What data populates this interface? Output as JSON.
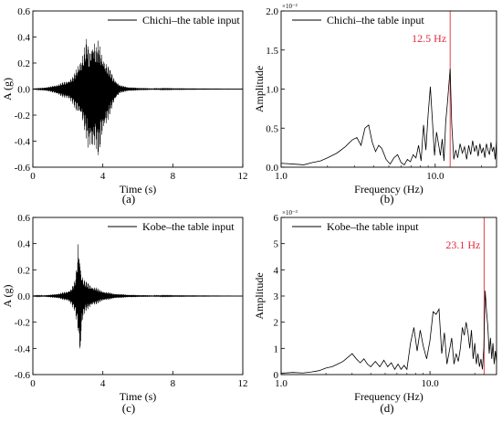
{
  "figure": {
    "panels": [
      {
        "id": "a",
        "panel_label": "(a)",
        "chart_data": {
          "type": "line",
          "title": "",
          "xlabel": "Time (s)",
          "ylabel": "A (g)",
          "xlim": [
            0,
            12
          ],
          "ylim": [
            -0.6,
            0.6
          ],
          "xscale": "linear",
          "xticks": [
            0,
            4,
            8,
            12
          ],
          "xtick_labels": [
            "0",
            "4",
            "8",
            "12"
          ],
          "yticks": [
            -0.6,
            -0.4,
            -0.2,
            0.0,
            0.2,
            0.4,
            0.6
          ],
          "ytick_labels": [
            "-0.6",
            "-0.4",
            "-0.2",
            "0.0",
            "0.2",
            "0.4",
            "0.6"
          ],
          "y_exponent_label": "",
          "legend": {
            "position": "top-right",
            "entries": [
              "Chichi–the table input"
            ]
          },
          "series": [
            {
              "name": "Chichi–the table input",
              "color": "#000000",
              "x": [
                0.0,
                0.5,
                1.0,
                1.5,
                2.0,
                2.3,
                2.5,
                2.7,
                2.9,
                3.0,
                3.1,
                3.2,
                3.3,
                3.4,
                3.5,
                3.6,
                3.7,
                3.8,
                3.9,
                4.0,
                4.2,
                4.4,
                4.6,
                4.8,
                5.0,
                5.5,
                6.0,
                7.0,
                8.0,
                10.0,
                12.0
              ],
              "ymax": [
                0.005,
                0.01,
                0.02,
                0.04,
                0.07,
                0.1,
                0.16,
                0.24,
                0.3,
                0.36,
                0.42,
                0.3,
                0.34,
                0.4,
                0.42,
                0.32,
                0.38,
                0.36,
                0.3,
                0.28,
                0.22,
                0.16,
                0.1,
                0.06,
                0.03,
                0.015,
                0.01,
                0.005,
                0.003,
                0.002,
                0.001
              ],
              "ymin": [
                -0.005,
                -0.01,
                -0.02,
                -0.05,
                -0.08,
                -0.12,
                -0.18,
                -0.22,
                -0.3,
                -0.36,
                -0.4,
                -0.5,
                -0.46,
                -0.55,
                -0.5,
                -0.45,
                -0.54,
                -0.52,
                -0.42,
                -0.38,
                -0.3,
                -0.2,
                -0.12,
                -0.07,
                -0.03,
                -0.015,
                -0.01,
                -0.005,
                -0.003,
                -0.002,
                -0.001
              ]
            }
          ]
        }
      },
      {
        "id": "b",
        "panel_label": "(b)",
        "chart_data": {
          "type": "line",
          "title": "",
          "xlabel": "Frequency (Hz)",
          "ylabel": "Amplitude",
          "xlim": [
            1,
            25
          ],
          "ylim": [
            0,
            0.02
          ],
          "xscale": "log",
          "xticks": [
            1,
            10
          ],
          "xtick_labels": [
            "1.0",
            "10.0"
          ],
          "yticks": [
            0,
            0.005,
            0.01,
            0.015,
            0.02
          ],
          "ytick_labels": [
            "0.0",
            "0.5",
            "1.0",
            "1.5",
            "2.0"
          ],
          "y_exponent_label": "×10⁻²",
          "legend": {
            "position": "top-right",
            "entries": [
              "Chichi–the table input"
            ]
          },
          "annotations": [
            {
              "text": "12.5 Hz",
              "x": 12.5,
              "color": "#e0293a"
            }
          ],
          "series": [
            {
              "name": "Chichi–the table input",
              "color": "#000000",
              "x": [
                1.0,
                1.2,
                1.4,
                1.6,
                1.8,
                2.0,
                2.3,
                2.6,
                2.9,
                3.1,
                3.3,
                3.5,
                3.7,
                3.9,
                4.1,
                4.3,
                4.5,
                4.8,
                5.1,
                5.4,
                5.7,
                6.0,
                6.3,
                6.6,
                6.9,
                7.2,
                7.5,
                7.8,
                8.1,
                8.4,
                8.7,
                9.0,
                9.3,
                9.6,
                9.9,
                10.2,
                10.5,
                10.8,
                11.1,
                11.4,
                11.7,
                12.0,
                12.5,
                12.8,
                13.2,
                13.6,
                14.0,
                14.5,
                15.0,
                15.5,
                16.0,
                16.5,
                17.0,
                17.5,
                18.0,
                18.5,
                19.0,
                19.5,
                20.0,
                20.5,
                21.0,
                21.5,
                22.0,
                22.5,
                23.0,
                23.5,
                24.0,
                24.5,
                25.0
              ],
              "y": [
                0.0005,
                0.0004,
                0.0003,
                0.0006,
                0.0008,
                0.0012,
                0.0018,
                0.0026,
                0.0035,
                0.0038,
                0.0028,
                0.005,
                0.0054,
                0.0032,
                0.002,
                0.0028,
                0.0024,
                0.001,
                0.0004,
                0.0012,
                0.0016,
                0.0006,
                0.0003,
                0.001,
                0.0007,
                0.0016,
                0.0012,
                0.0028,
                0.0008,
                0.0054,
                0.0022,
                0.0068,
                0.0103,
                0.0058,
                0.0015,
                0.0045,
                0.003,
                0.0015,
                0.0036,
                0.0008,
                0.0058,
                0.0082,
                0.0126,
                0.0055,
                0.001,
                0.0022,
                0.0012,
                0.003,
                0.0018,
                0.0026,
                0.001,
                0.0028,
                0.0016,
                0.0034,
                0.002,
                0.0028,
                0.0014,
                0.003,
                0.0018,
                0.0025,
                0.0012,
                0.003,
                0.0022,
                0.0016,
                0.0032,
                0.002,
                0.0026,
                0.001,
                0.0034
              ]
            }
          ]
        }
      },
      {
        "id": "c",
        "panel_label": "(c)",
        "chart_data": {
          "type": "line",
          "title": "",
          "xlabel": "Time (s)",
          "ylabel": "A (g)",
          "xlim": [
            0,
            12
          ],
          "ylim": [
            -0.6,
            0.6
          ],
          "xscale": "linear",
          "xticks": [
            0,
            4,
            8,
            12
          ],
          "xtick_labels": [
            "0",
            "4",
            "8",
            "12"
          ],
          "yticks": [
            -0.6,
            -0.4,
            -0.2,
            0.0,
            0.2,
            0.4,
            0.6
          ],
          "ytick_labels": [
            "-0.6",
            "-0.4",
            "-0.2",
            "0.0",
            "0.2",
            "0.4",
            "0.6"
          ],
          "y_exponent_label": "",
          "legend": {
            "position": "top-right",
            "entries": [
              "Kobe–the table input"
            ]
          },
          "series": [
            {
              "name": "Kobe–the table input",
              "color": "#000000",
              "x": [
                0.0,
                0.5,
                1.0,
                1.5,
                2.0,
                2.2,
                2.4,
                2.5,
                2.6,
                2.7,
                2.8,
                2.9,
                3.0,
                3.2,
                3.4,
                3.6,
                3.8,
                4.0,
                4.3,
                4.6,
                5.0,
                5.5,
                6.0,
                7.0,
                8.0,
                10.0,
                12.0
              ],
              "ymax": [
                0.002,
                0.005,
                0.01,
                0.02,
                0.04,
                0.06,
                0.12,
                0.22,
                0.47,
                0.3,
                0.18,
                0.14,
                0.12,
                0.1,
                0.08,
                0.07,
                0.05,
                0.04,
                0.03,
                0.02,
                0.015,
                0.01,
                0.008,
                0.005,
                0.003,
                0.002,
                0.001
              ],
              "ymin": [
                -0.002,
                -0.005,
                -0.01,
                -0.02,
                -0.04,
                -0.07,
                -0.12,
                -0.2,
                -0.32,
                -0.57,
                -0.24,
                -0.16,
                -0.12,
                -0.1,
                -0.08,
                -0.07,
                -0.05,
                -0.04,
                -0.03,
                -0.02,
                -0.015,
                -0.01,
                -0.008,
                -0.005,
                -0.003,
                -0.002,
                -0.001
              ]
            }
          ]
        }
      },
      {
        "id": "d",
        "panel_label": "(d)",
        "chart_data": {
          "type": "line",
          "title": "",
          "xlabel": "Frequency (Hz)",
          "ylabel": "Amplitude",
          "xlim": [
            1,
            28
          ],
          "ylim": [
            0,
            0.006
          ],
          "xscale": "log",
          "xticks": [
            1,
            10
          ],
          "xtick_labels": [
            "1.0",
            "10.0"
          ],
          "yticks": [
            0,
            0.001,
            0.002,
            0.003,
            0.004,
            0.005,
            0.006
          ],
          "ytick_labels": [
            "0",
            "1",
            "2",
            "3",
            "4",
            "5",
            "6"
          ],
          "y_exponent_label": "×10⁻³",
          "legend": {
            "position": "top-right",
            "entries": [
              "Kobe–the table input"
            ]
          },
          "annotations": [
            {
              "text": "23.1 Hz",
              "x": 23.1,
              "color": "#e0293a"
            }
          ],
          "series": [
            {
              "name": "Kobe–the table input",
              "color": "#000000",
              "x": [
                1.0,
                1.2,
                1.4,
                1.6,
                1.8,
                2.0,
                2.2,
                2.4,
                2.6,
                2.8,
                3.0,
                3.2,
                3.4,
                3.6,
                3.8,
                4.0,
                4.3,
                4.6,
                4.9,
                5.2,
                5.5,
                5.8,
                6.1,
                6.4,
                6.7,
                7.0,
                7.4,
                7.8,
                8.2,
                8.6,
                9.0,
                9.5,
                10.0,
                10.5,
                11.0,
                11.5,
                12.0,
                12.5,
                13.0,
                13.5,
                14.0,
                14.5,
                15.0,
                15.5,
                16.0,
                16.5,
                17.0,
                17.5,
                18.0,
                18.5,
                19.0,
                19.5,
                20.0,
                20.5,
                21.0,
                21.5,
                22.0,
                22.5,
                23.0,
                23.5,
                24.0,
                24.5,
                25.0,
                25.5,
                26.0,
                26.5,
                27.0,
                27.5,
                28.0
              ],
              "y": [
                5e-05,
                8e-05,
                6e-05,
                0.0001,
                0.00015,
                0.00025,
                0.0003,
                0.0004,
                0.0005,
                0.00065,
                0.0008,
                0.0006,
                0.00045,
                0.0006,
                0.0004,
                0.0003,
                0.0005,
                0.0003,
                0.00055,
                0.0003,
                0.00045,
                0.0002,
                0.0004,
                0.0002,
                0.00035,
                0.0002,
                0.0012,
                0.0018,
                0.0009,
                0.0017,
                0.0011,
                0.0006,
                0.0013,
                0.0024,
                0.0023,
                0.0025,
                0.0008,
                0.0016,
                0.0004,
                0.0009,
                0.0014,
                0.0004,
                0.0008,
                0.0005,
                0.001,
                0.0018,
                0.0015,
                0.002,
                0.0016,
                0.001,
                0.0017,
                0.0006,
                0.0012,
                0.0004,
                0.0008,
                0.0003,
                0.0006,
                0.0002,
                0.001,
                0.0032,
                0.0024,
                0.0018,
                0.0008,
                0.0014,
                0.0006,
                0.0012,
                0.0004,
                0.0009,
                0.0005
              ]
            }
          ]
        }
      }
    ]
  }
}
